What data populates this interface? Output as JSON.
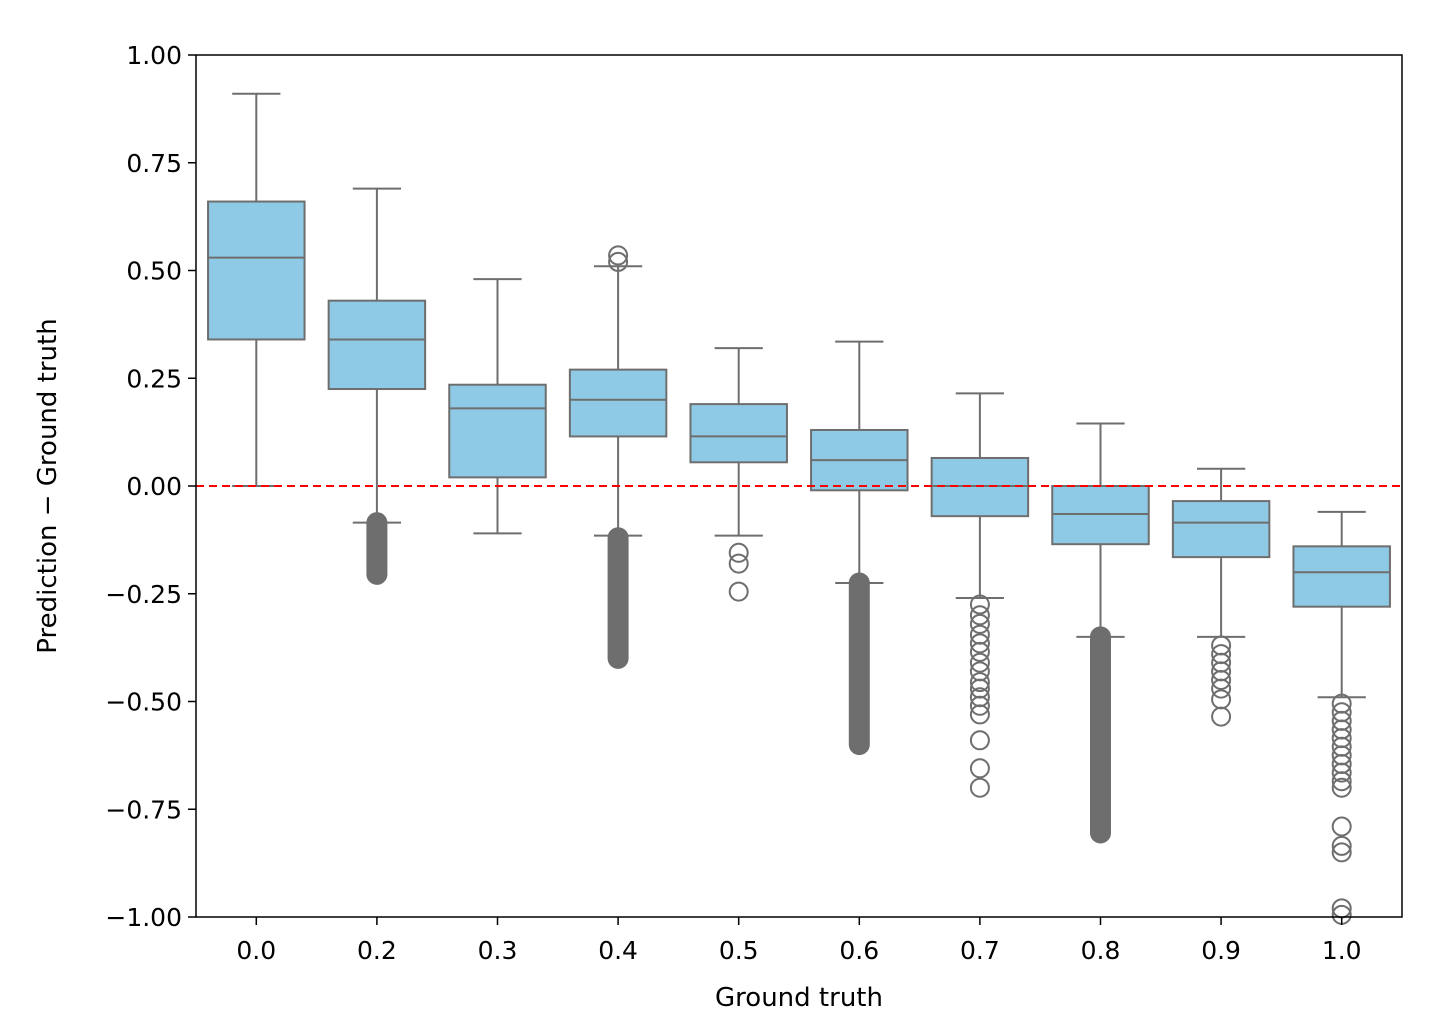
{
  "chart_data": {
    "type": "boxplot",
    "title": "",
    "xlabel": "Ground truth",
    "ylabel": "Prediction − Ground truth",
    "ylim": [
      -1.0,
      1.0
    ],
    "y_ticks": [
      1.0,
      0.75,
      0.5,
      0.25,
      0.0,
      -0.25,
      -0.5,
      -0.75,
      -1.0
    ],
    "y_tick_labels": [
      "1.00",
      "0.75",
      "0.50",
      "0.25",
      "0.00",
      "−0.25",
      "−0.50",
      "−0.75",
      "−1.00"
    ],
    "categories": [
      "0.0",
      "0.2",
      "0.3",
      "0.4",
      "0.5",
      "0.6",
      "0.7",
      "0.8",
      "0.9",
      "1.0"
    ],
    "reference_line": {
      "y": 0.0,
      "color": "#ff0000",
      "style": "dashed"
    },
    "box_color": "#8ecae6",
    "line_color": "#6e6e6e",
    "boxes": [
      {
        "category": "0.0",
        "whisker_low": 0.0,
        "q1": 0.34,
        "median": 0.53,
        "q3": 0.66,
        "whisker_high": 0.91,
        "outliers": [],
        "outlier_bands": []
      },
      {
        "category": "0.2",
        "whisker_low": -0.085,
        "q1": 0.225,
        "median": 0.34,
        "q3": 0.43,
        "whisker_high": 0.69,
        "outliers": [],
        "outlier_bands": [
          [
            -0.205,
            -0.085
          ]
        ]
      },
      {
        "category": "0.3",
        "whisker_low": -0.11,
        "q1": 0.02,
        "median": 0.18,
        "q3": 0.235,
        "whisker_high": 0.48,
        "outliers": [],
        "outlier_bands": []
      },
      {
        "category": "0.4",
        "whisker_low": -0.115,
        "q1": 0.115,
        "median": 0.2,
        "q3": 0.27,
        "whisker_high": 0.51,
        "outliers": [
          0.52,
          0.535
        ],
        "outlier_bands": [
          [
            -0.4,
            -0.12
          ]
        ]
      },
      {
        "category": "0.5",
        "whisker_low": -0.115,
        "q1": 0.055,
        "median": 0.115,
        "q3": 0.19,
        "whisker_high": 0.32,
        "outliers": [
          -0.155,
          -0.18,
          -0.245
        ],
        "outlier_bands": []
      },
      {
        "category": "0.6",
        "whisker_low": -0.225,
        "q1": -0.01,
        "median": 0.06,
        "q3": 0.13,
        "whisker_high": 0.335,
        "outliers": [],
        "outlier_bands": [
          [
            -0.6,
            -0.225
          ]
        ]
      },
      {
        "category": "0.7",
        "whisker_low": -0.26,
        "q1": -0.07,
        "median": 0.0,
        "q3": 0.065,
        "whisker_high": 0.215,
        "outliers": [
          -0.275,
          -0.3,
          -0.32,
          -0.345,
          -0.365,
          -0.385,
          -0.41,
          -0.43,
          -0.455,
          -0.47,
          -0.49,
          -0.51,
          -0.53,
          -0.59,
          -0.655,
          -0.7
        ],
        "outlier_bands": []
      },
      {
        "category": "0.8",
        "whisker_low": -0.35,
        "q1": -0.135,
        "median": -0.065,
        "q3": 0.0,
        "whisker_high": 0.145,
        "outliers": [],
        "outlier_bands": [
          [
            -0.805,
            -0.35
          ]
        ]
      },
      {
        "category": "0.9",
        "whisker_low": -0.35,
        "q1": -0.165,
        "median": -0.085,
        "q3": -0.035,
        "whisker_high": 0.04,
        "outliers": [
          -0.37,
          -0.39,
          -0.41,
          -0.43,
          -0.45,
          -0.47,
          -0.495,
          -0.535
        ],
        "outlier_bands": []
      },
      {
        "category": "1.0",
        "whisker_low": -0.49,
        "q1": -0.28,
        "median": -0.2,
        "q3": -0.14,
        "whisker_high": -0.06,
        "outliers": [
          -0.505,
          -0.525,
          -0.545,
          -0.565,
          -0.585,
          -0.605,
          -0.625,
          -0.645,
          -0.665,
          -0.685,
          -0.7,
          -0.79,
          -0.835,
          -0.85,
          -0.98,
          -0.995
        ],
        "outlier_bands": []
      }
    ]
  }
}
